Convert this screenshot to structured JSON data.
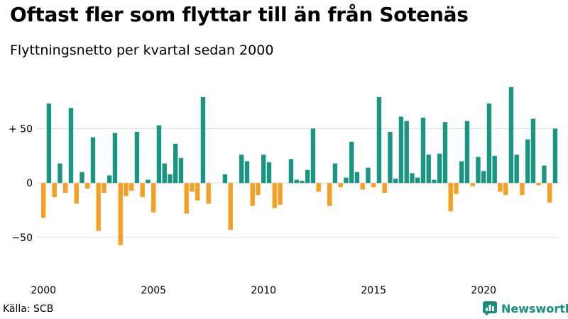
{
  "title": "Oftast fler som flyttar till än från Sotenäs",
  "subtitle": "Flyttningsnetto per kvartal sedan 2000",
  "source": "Källa: SCB",
  "brand": "Newsworthy",
  "colors": {
    "positive": "#1a9483",
    "negative": "#f5a023",
    "grid": "#dddddd",
    "brand": "#178d7e"
  },
  "chart_data": {
    "type": "bar",
    "x_tick_labels": [
      "2000",
      "2005",
      "2010",
      "2015",
      "2020"
    ],
    "x_ticks": [
      2000,
      2005,
      2010,
      2015,
      2020
    ],
    "y_tick_labels": [
      "+ 50",
      "0",
      "−50"
    ],
    "y_ticks": [
      50,
      0,
      -50
    ],
    "ylim": [
      -95,
      90
    ],
    "grid": true,
    "legend": "none",
    "start_year": 2000,
    "values": [
      -32,
      73,
      -13,
      18,
      -9,
      69,
      -19,
      10,
      -5,
      42,
      -44,
      -9,
      7,
      46,
      -57,
      -12,
      -7,
      47,
      -13,
      3,
      -27,
      53,
      18,
      8,
      36,
      23,
      -28,
      -8,
      -16,
      79,
      -19,
      0,
      0,
      8,
      -43,
      0,
      26,
      20,
      -21,
      -11,
      26,
      19,
      -23,
      -20,
      0,
      22,
      3,
      2,
      12,
      50,
      -8,
      0,
      -21,
      18,
      -4,
      5,
      38,
      10,
      -6,
      14,
      -4,
      79,
      -9,
      47,
      4,
      61,
      57,
      9,
      5,
      60,
      26,
      3,
      27,
      56,
      -26,
      -10,
      20,
      57,
      -3,
      24,
      11,
      73,
      25,
      -8,
      -11,
      88,
      26,
      -11,
      40,
      59,
      -2,
      16,
      -18,
      50
    ]
  }
}
